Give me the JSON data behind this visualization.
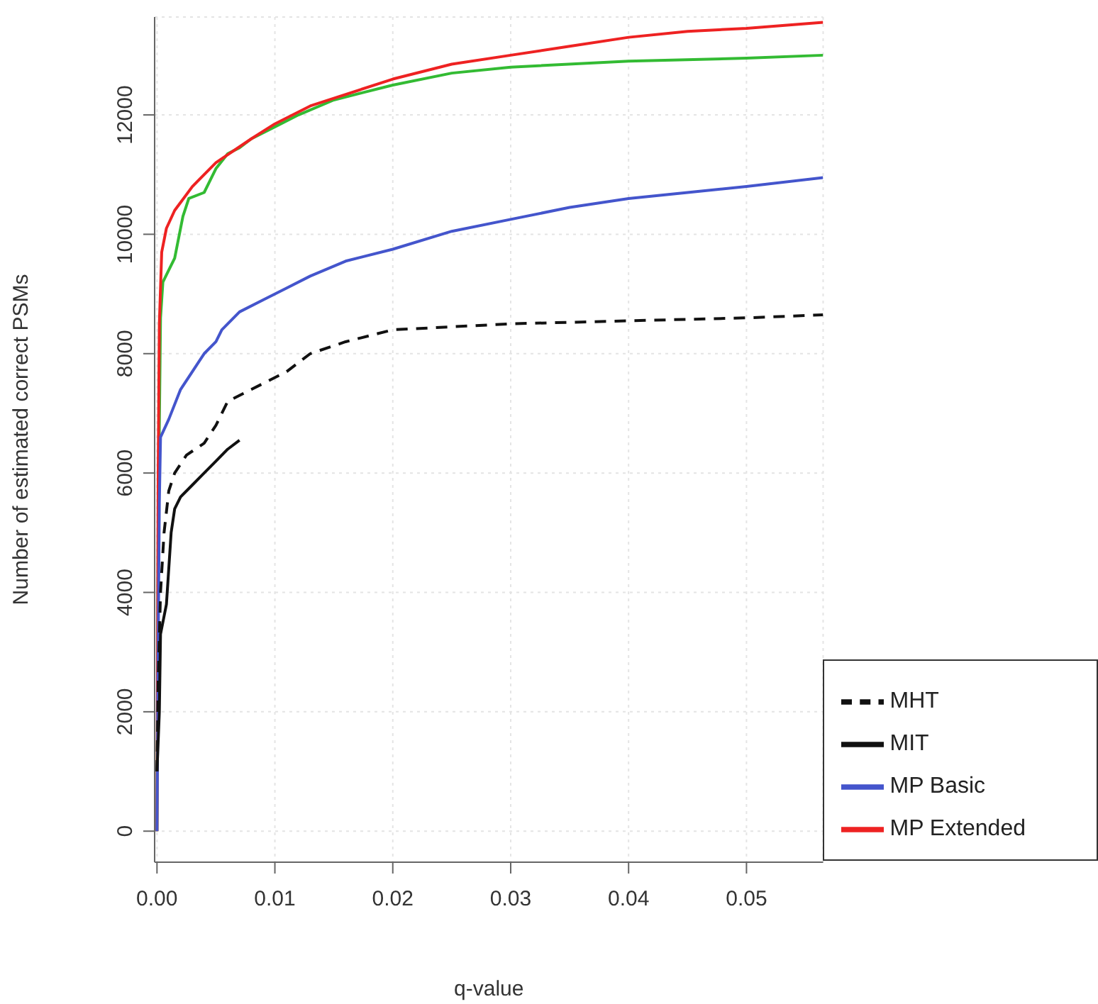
{
  "chart_data": {
    "type": "line",
    "xlabel": "q-value",
    "ylabel": "Number of estimated correct PSMs",
    "xlim": [
      -0.0002,
      0.0565
    ],
    "xticks": [
      {
        "value": 0,
        "label": "0.00"
      },
      {
        "value": 0.01,
        "label": "0.01"
      },
      {
        "value": 0.02,
        "label": "0.02"
      },
      {
        "value": 0.03,
        "label": "0.03"
      },
      {
        "value": 0.04,
        "label": "0.04"
      },
      {
        "value": 0.05,
        "label": "0.05"
      }
    ],
    "ylim": [
      -520,
      13640
    ],
    "yticks": [
      0,
      2000,
      4000,
      6000,
      8000,
      10000,
      12000
    ],
    "grid": true,
    "legend": "bottom right",
    "line_style": "solid",
    "series": [
      {
        "color": "#33bb33",
        "x": [
          0,
          0.0001,
          0.0003,
          0.0005,
          0.001,
          0.0015,
          0.0022,
          0.0027,
          0.004,
          0.005,
          0.006,
          0.007,
          0.008,
          0.01,
          0.012,
          0.015,
          0.02,
          0.025,
          0.03,
          0.04,
          0.05,
          0.0565
        ],
        "values": [
          0,
          5000,
          8600,
          9200,
          9400,
          9600,
          10300,
          10600,
          10700,
          11100,
          11350,
          11450,
          11600,
          11800,
          12000,
          12250,
          12500,
          12700,
          12800,
          12900,
          12950,
          13000
        ]
      },
      {
        "name": "MP Extended",
        "color": "#ee2222",
        "x": [
          0,
          0.0001,
          0.0002,
          0.0004,
          0.0008,
          0.0015,
          0.003,
          0.005,
          0.008,
          0.01,
          0.013,
          0.02,
          0.025,
          0.03,
          0.035,
          0.04,
          0.045,
          0.05,
          0.0565
        ],
        "values": [
          0,
          6000,
          8500,
          9700,
          10100,
          10400,
          10800,
          11200,
          11600,
          11850,
          12150,
          12600,
          12850,
          13000,
          13150,
          13300,
          13400,
          13450,
          13550
        ]
      },
      {
        "name": "MP Basic",
        "color": "#4455cc",
        "x": [
          0,
          0.0001,
          0.0002,
          0.0003,
          0.001,
          0.002,
          0.003,
          0.004,
          0.005,
          0.0055,
          0.007,
          0.009,
          0.011,
          0.013,
          0.016,
          0.02,
          0.025,
          0.03,
          0.035,
          0.04,
          0.045,
          0.05,
          0.0565
        ],
        "values": [
          0,
          3000,
          5500,
          6600,
          6900,
          7400,
          7700,
          8000,
          8200,
          8400,
          8700,
          8900,
          9100,
          9300,
          9550,
          9750,
          10050,
          10250,
          10450,
          10600,
          10700,
          10800,
          10950
        ]
      },
      {
        "name": "MHT",
        "color": "#111111",
        "line_style": "dashed",
        "x": [
          0,
          0.0001,
          0.0003,
          0.0006,
          0.001,
          0.0015,
          0.0025,
          0.004,
          0.005,
          0.006,
          0.008,
          0.011,
          0.013,
          0.016,
          0.02,
          0.03,
          0.04,
          0.05,
          0.0565
        ],
        "values": [
          1000,
          2500,
          4000,
          5000,
          5700,
          6000,
          6300,
          6500,
          6800,
          7200,
          7400,
          7700,
          8000,
          8200,
          8400,
          8500,
          8550,
          8600,
          8650
        ]
      },
      {
        "name": "MIT",
        "color": "#111111",
        "x": [
          0,
          0.0002,
          0.0003,
          0.0008,
          0.0012,
          0.0015,
          0.002,
          0.003,
          0.004,
          0.005,
          0.006,
          0.007
        ],
        "values": [
          1000,
          2000,
          3300,
          3800,
          5000,
          5400,
          5600,
          5800,
          6000,
          6200,
          6400,
          6550
        ]
      }
    ]
  }
}
